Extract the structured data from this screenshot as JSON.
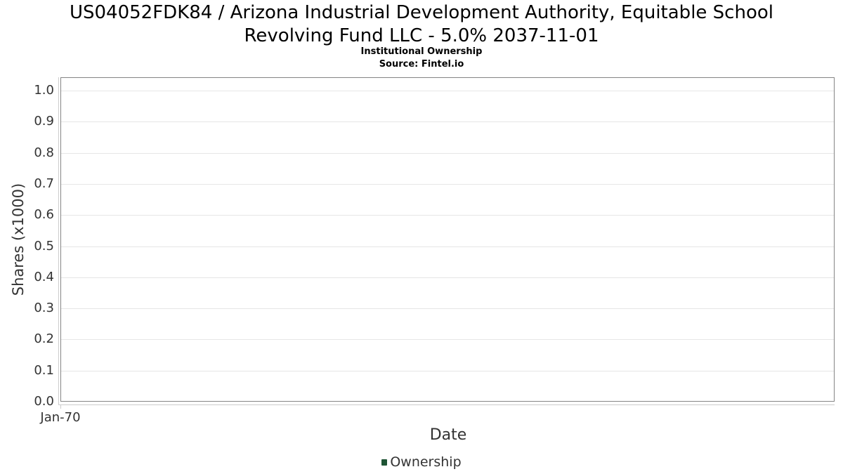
{
  "header": {
    "title_lines": [
      "US04052FDK84 / Arizona Industrial Development Authority, Equitable School",
      "Revolving Fund LLC - 5.0% 2037-11-01"
    ],
    "subtitle": "Institutional Ownership",
    "source": "Source: Fintel.io"
  },
  "chart_data": {
    "type": "bar",
    "title": "US04052FDK84 / Arizona Industrial Development Authority, Equitable School Revolving Fund LLC - 5.0% 2037-11-01",
    "subtitle": "Institutional Ownership",
    "source": "Source: Fintel.io",
    "xlabel": "Date",
    "ylabel": "Shares (x1000)",
    "ylim": [
      0,
      1.045
    ],
    "ytick_labels": [
      "0.0",
      "0.1",
      "0.2",
      "0.3",
      "0.4",
      "0.5",
      "0.6",
      "0.7",
      "0.8",
      "0.9",
      "1.0"
    ],
    "xtick_labels": [
      "Jan-70"
    ],
    "categories": [],
    "series": [
      {
        "name": "Ownership",
        "color": "#1e5434",
        "values": []
      }
    ],
    "grid": "horizontal-only",
    "legend_position": "bottom-center",
    "plot_background": "#ffffff"
  },
  "legend": {
    "items": [
      {
        "label": "Ownership",
        "color": "#1e5434"
      }
    ]
  },
  "colors": {
    "title_text": "#000000",
    "axis_text": "#333333",
    "gridline": "#e6e6e6",
    "plot_border": "#858585",
    "axis_line": "#cccccc",
    "ownership_green": "#1e5434"
  }
}
